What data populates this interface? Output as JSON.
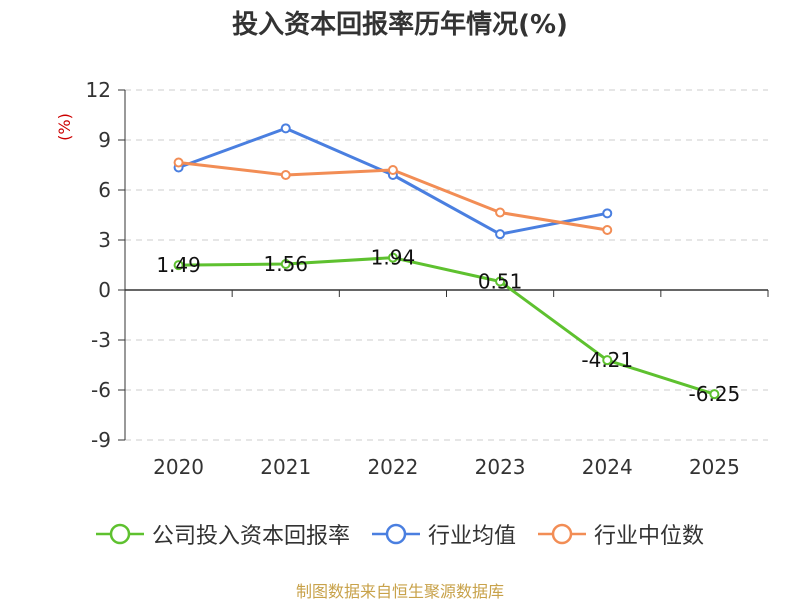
{
  "chart_data": {
    "type": "line",
    "title": "投入资本回报率历年情况(%)",
    "ylabel": "(%)",
    "xlabel": "",
    "categories": [
      "2020",
      "2021",
      "2022",
      "2023",
      "2024",
      "2025"
    ],
    "ylim": [
      -9,
      12
    ],
    "yticks": [
      12,
      9,
      6,
      3,
      0,
      -3,
      -6,
      -9
    ],
    "grid": true,
    "legend_position": "bottom",
    "series": [
      {
        "name": "公司投入资本回报率",
        "color": "#5ec12f",
        "values": [
          1.49,
          1.56,
          1.94,
          0.51,
          -4.21,
          -6.25
        ],
        "data_labels": [
          "1.49",
          "1.56",
          "1.94",
          "0.51",
          "-4.21",
          "-6.25"
        ]
      },
      {
        "name": "行业均值",
        "color": "#4a7fe0",
        "values": [
          7.35,
          9.7,
          6.9,
          3.35,
          4.6,
          null
        ]
      },
      {
        "name": "行业中位数",
        "color": "#f28d55",
        "values": [
          7.65,
          6.9,
          7.2,
          4.65,
          3.6,
          null
        ]
      }
    ]
  },
  "footer": {
    "source": "制图数据来自恒生聚源数据库"
  }
}
